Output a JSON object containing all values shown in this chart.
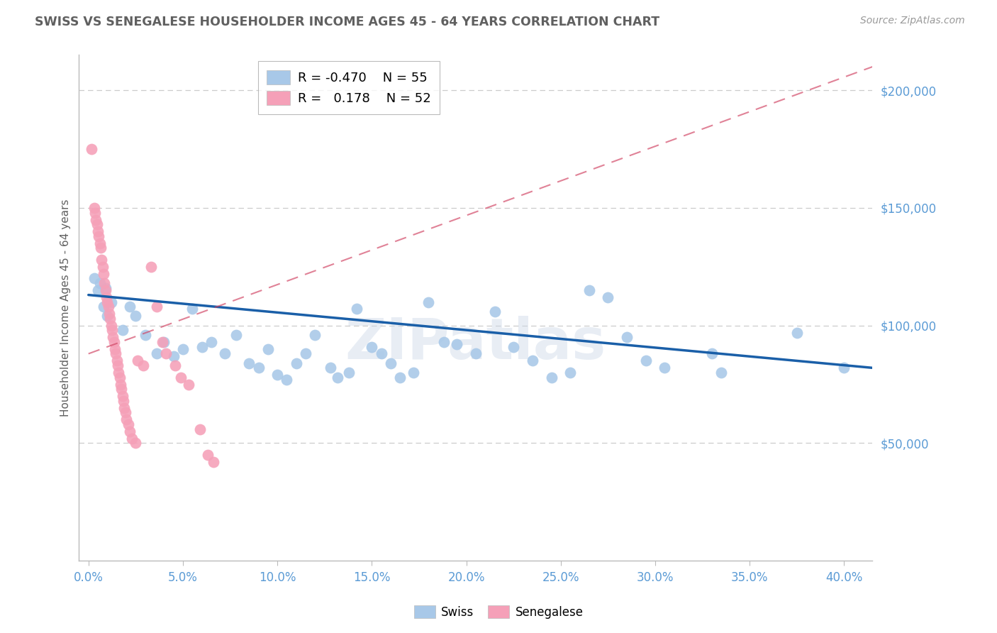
{
  "title": "SWISS VS SENEGALESE HOUSEHOLDER INCOME AGES 45 - 64 YEARS CORRELATION CHART",
  "source": "Source: ZipAtlas.com",
  "ylabel": "Householder Income Ages 45 - 64 years",
  "xlabel_ticks": [
    "0.0%",
    "5.0%",
    "10.0%",
    "15.0%",
    "20.0%",
    "25.0%",
    "30.0%",
    "35.0%",
    "40.0%"
  ],
  "xlabel_vals": [
    0.0,
    5.0,
    10.0,
    15.0,
    20.0,
    25.0,
    30.0,
    35.0,
    40.0
  ],
  "ytick_labels": [
    "$50,000",
    "$100,000",
    "$150,000",
    "$200,000"
  ],
  "ytick_vals": [
    50000,
    100000,
    150000,
    200000
  ],
  "ylim": [
    0,
    215000
  ],
  "xlim": [
    -0.5,
    41.5
  ],
  "swiss_R": -0.47,
  "swiss_N": 55,
  "senegalese_R": 0.178,
  "senegalese_N": 52,
  "swiss_color": "#a8c8e8",
  "swiss_line_color": "#1a5fa8",
  "senegalese_color": "#f5a0b8",
  "senegalese_line_color": "#d04060",
  "watermark": "ZIPatlas",
  "background_color": "#ffffff",
  "grid_color": "#cccccc",
  "title_color": "#606060",
  "axis_label_color": "#5b9bd5",
  "swiss_points": [
    [
      0.3,
      120000
    ],
    [
      0.5,
      115000
    ],
    [
      0.6,
      118000
    ],
    [
      0.8,
      108000
    ],
    [
      0.9,
      116000
    ],
    [
      1.0,
      104000
    ],
    [
      1.2,
      110000
    ],
    [
      1.8,
      98000
    ],
    [
      2.2,
      108000
    ],
    [
      2.5,
      104000
    ],
    [
      3.0,
      96000
    ],
    [
      3.6,
      88000
    ],
    [
      4.0,
      93000
    ],
    [
      4.5,
      87000
    ],
    [
      5.0,
      90000
    ],
    [
      5.5,
      107000
    ],
    [
      6.0,
      91000
    ],
    [
      6.5,
      93000
    ],
    [
      7.2,
      88000
    ],
    [
      7.8,
      96000
    ],
    [
      8.5,
      84000
    ],
    [
      9.0,
      82000
    ],
    [
      9.5,
      90000
    ],
    [
      10.0,
      79000
    ],
    [
      10.5,
      77000
    ],
    [
      11.0,
      84000
    ],
    [
      11.5,
      88000
    ],
    [
      12.0,
      96000
    ],
    [
      12.8,
      82000
    ],
    [
      13.2,
      78000
    ],
    [
      13.8,
      80000
    ],
    [
      14.2,
      107000
    ],
    [
      15.0,
      91000
    ],
    [
      15.5,
      88000
    ],
    [
      16.0,
      84000
    ],
    [
      16.5,
      78000
    ],
    [
      17.2,
      80000
    ],
    [
      18.0,
      110000
    ],
    [
      18.8,
      93000
    ],
    [
      19.5,
      92000
    ],
    [
      20.5,
      88000
    ],
    [
      21.5,
      106000
    ],
    [
      22.5,
      91000
    ],
    [
      23.5,
      85000
    ],
    [
      24.5,
      78000
    ],
    [
      25.5,
      80000
    ],
    [
      26.5,
      115000
    ],
    [
      27.5,
      112000
    ],
    [
      28.5,
      95000
    ],
    [
      29.5,
      85000
    ],
    [
      30.5,
      82000
    ],
    [
      33.0,
      88000
    ],
    [
      33.5,
      80000
    ],
    [
      37.5,
      97000
    ],
    [
      40.0,
      82000
    ]
  ],
  "senegalese_points": [
    [
      0.15,
      175000
    ],
    [
      0.3,
      150000
    ],
    [
      0.35,
      148000
    ],
    [
      0.4,
      145000
    ],
    [
      0.45,
      143000
    ],
    [
      0.5,
      140000
    ],
    [
      0.55,
      138000
    ],
    [
      0.6,
      135000
    ],
    [
      0.65,
      133000
    ],
    [
      0.7,
      128000
    ],
    [
      0.75,
      125000
    ],
    [
      0.8,
      122000
    ],
    [
      0.85,
      118000
    ],
    [
      0.9,
      115000
    ],
    [
      0.95,
      112000
    ],
    [
      1.0,
      110000
    ],
    [
      1.05,
      108000
    ],
    [
      1.1,
      105000
    ],
    [
      1.15,
      103000
    ],
    [
      1.2,
      100000
    ],
    [
      1.25,
      98000
    ],
    [
      1.3,
      95000
    ],
    [
      1.35,
      93000
    ],
    [
      1.4,
      90000
    ],
    [
      1.45,
      88000
    ],
    [
      1.5,
      85000
    ],
    [
      1.55,
      83000
    ],
    [
      1.6,
      80000
    ],
    [
      1.65,
      78000
    ],
    [
      1.7,
      75000
    ],
    [
      1.75,
      73000
    ],
    [
      1.8,
      70000
    ],
    [
      1.85,
      68000
    ],
    [
      1.9,
      65000
    ],
    [
      1.95,
      63000
    ],
    [
      2.0,
      60000
    ],
    [
      2.1,
      58000
    ],
    [
      2.2,
      55000
    ],
    [
      2.3,
      52000
    ],
    [
      2.5,
      50000
    ],
    [
      2.6,
      85000
    ],
    [
      2.9,
      83000
    ],
    [
      3.3,
      125000
    ],
    [
      3.6,
      108000
    ],
    [
      3.9,
      93000
    ],
    [
      4.1,
      88000
    ],
    [
      4.6,
      83000
    ],
    [
      4.9,
      78000
    ],
    [
      5.3,
      75000
    ],
    [
      5.9,
      56000
    ],
    [
      6.3,
      45000
    ],
    [
      6.6,
      42000
    ]
  ],
  "swiss_trendline_x": [
    0.0,
    41.5
  ],
  "senegalese_trendline_x": [
    0.0,
    41.5
  ]
}
